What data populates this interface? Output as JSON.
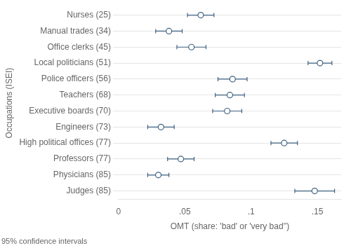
{
  "chart_data": {
    "type": "dot",
    "orientation": "horizontal",
    "categories": [
      "Nurses (25)",
      "Manual trades (34)",
      "Office clerks (45)",
      "Local politicians (51)",
      "Police officers (56)",
      "Teachers (68)",
      "Executive boards (70)",
      "Engineers (73)",
      "High political offices (77)",
      "Professors (77)",
      "Physicians (85)",
      "Judges (85)"
    ],
    "values": [
      0.062,
      0.038,
      0.055,
      0.152,
      0.086,
      0.084,
      0.082,
      0.032,
      0.125,
      0.047,
      0.03,
      0.148
    ],
    "ci_low": [
      0.052,
      0.028,
      0.044,
      0.143,
      0.075,
      0.073,
      0.071,
      0.022,
      0.115,
      0.037,
      0.022,
      0.133
    ],
    "ci_high": [
      0.072,
      0.048,
      0.066,
      0.161,
      0.097,
      0.095,
      0.093,
      0.042,
      0.135,
      0.057,
      0.038,
      0.163
    ],
    "xlabel": "OMT (share: 'bad' or 'very bad'')",
    "ylabel": "Occupations (ISEI)",
    "annotations": [
      "95% confidence intervals"
    ],
    "xlim": [
      0,
      0.168
    ],
    "xticks": [
      0,
      {
        "value": 0.05,
        "label": ".05"
      },
      {
        "value": 0.1,
        "label": ".1"
      },
      {
        "value": 0.15,
        "label": ".15"
      }
    ],
    "color": "#3d6080",
    "marker": "circle",
    "grid": "y"
  }
}
